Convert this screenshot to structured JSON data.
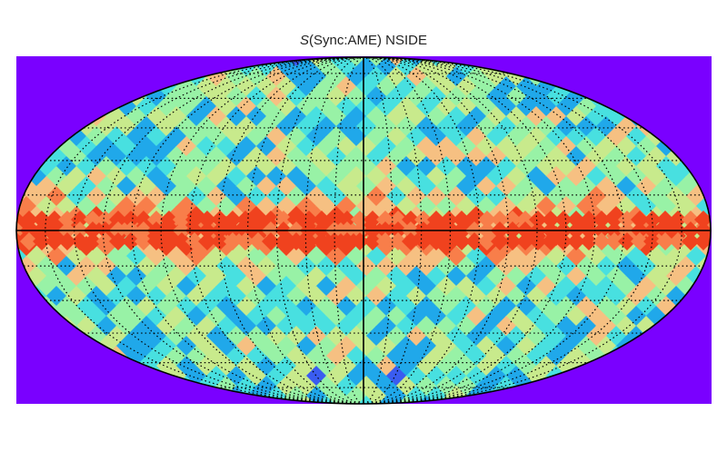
{
  "title": {
    "symbol": "S",
    "text": "(Sync:AME) NSIDE"
  },
  "map": {
    "projection": "mollweide",
    "background_color": "#7a00ff",
    "graticule": {
      "meridian_step_deg": 15,
      "parallel_step_deg": 15,
      "style": "dotted"
    },
    "colormap": [
      "#3a5cf0",
      "#20a8ea",
      "#48e0e0",
      "#98f2a6",
      "#c8ea8c",
      "#f6c082",
      "#f87e4a",
      "#f0421e"
    ],
    "galactic_plane_color": "#f0421e"
  }
}
